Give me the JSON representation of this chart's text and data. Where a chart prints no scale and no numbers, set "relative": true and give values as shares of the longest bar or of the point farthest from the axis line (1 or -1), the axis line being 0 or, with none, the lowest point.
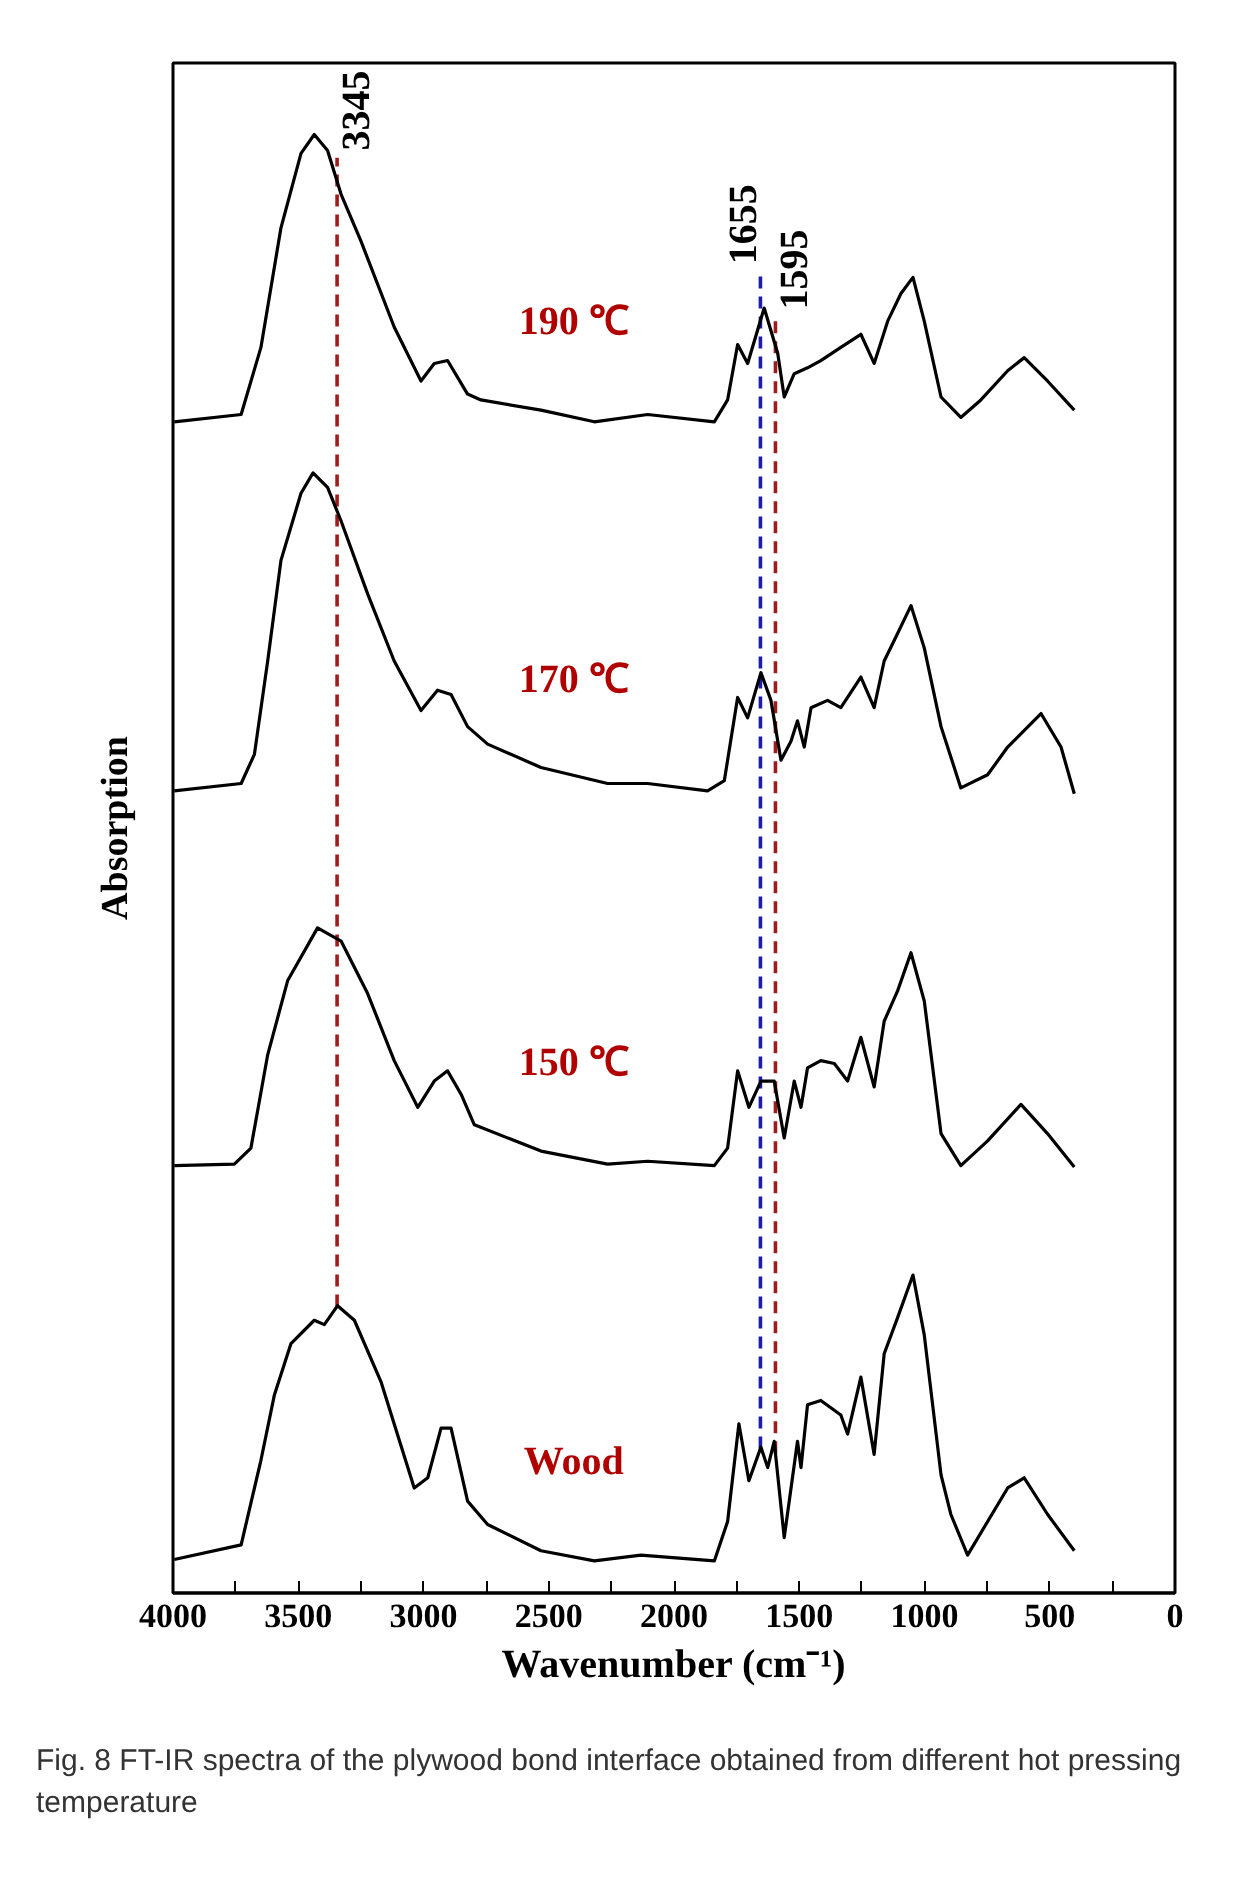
{
  "chart_data": {
    "type": "line",
    "relative": true,
    "xlabel": "Wavenumber (cm⁻¹)",
    "ylabel": "Absorption",
    "xlim": [
      4000,
      0
    ],
    "xticks": [
      4000,
      {
        "value": 3750,
        "label": null
      },
      3500,
      {
        "value": 3250,
        "label": null
      },
      3000,
      {
        "value": 2750,
        "label": null
      },
      2500,
      {
        "value": 2250,
        "label": null
      },
      2000,
      {
        "value": 1750,
        "label": null
      },
      1500,
      {
        "value": 1250,
        "label": null
      },
      1000,
      {
        "value": 750,
        "label": null
      },
      500,
      {
        "value": 250,
        "label": null
      },
      0
    ],
    "grid": false,
    "line_style": "solid",
    "ref_lines": [
      {
        "axis": "x",
        "value": 3345,
        "label": "3345",
        "color": "#a01c1c",
        "line_style": "dashed"
      },
      {
        "axis": "x",
        "value": 1655,
        "label": "1655",
        "color": "#1c1cb0",
        "line_style": "dashed"
      },
      {
        "axis": "x",
        "value": 1595,
        "label": "1595",
        "color": "#a01c1c",
        "line_style": "dashed"
      }
    ],
    "annotations": [
      "Fig. 8  FT-IR spectra of the plywood bond interface obtained from different hot pressing temperature"
    ],
    "series": [
      {
        "name": "190 ℃",
        "color": "#000000",
        "x": [
          3995,
          3728,
          3649,
          3569,
          3489,
          3436,
          3383,
          3329,
          3250,
          3117,
          3010,
          2957,
          2904,
          2824,
          2771,
          2531,
          2318,
          2105,
          1839,
          1786,
          1746,
          1706,
          1640,
          1586,
          1560,
          1520,
          1467,
          1414,
          1334,
          1254,
          1201,
          1147,
          1094,
          1046,
          1001,
          934,
          855,
          775,
          668,
          602,
          509,
          402
        ],
        "values": [
          0.803,
          0.808,
          0.854,
          0.936,
          0.987,
          1.0,
          0.989,
          0.959,
          0.927,
          0.868,
          0.831,
          0.843,
          0.845,
          0.822,
          0.818,
          0.811,
          0.803,
          0.808,
          0.803,
          0.818,
          0.856,
          0.843,
          0.881,
          0.85,
          0.82,
          0.836,
          0.84,
          0.845,
          0.854,
          0.863,
          0.843,
          0.872,
          0.891,
          0.902,
          0.872,
          0.82,
          0.806,
          0.818,
          0.838,
          0.847,
          0.831,
          0.811
        ]
      },
      {
        "name": "170 ℃",
        "color": "#000000",
        "x": [
          3995,
          3728,
          3675,
          3622,
          3569,
          3489,
          3441,
          3383,
          3329,
          3223,
          3117,
          3010,
          2944,
          2890,
          2824,
          2744,
          2531,
          2265,
          2105,
          1866,
          1799,
          1746,
          1706,
          1653,
          1613,
          1573,
          1533,
          1507,
          1480,
          1453,
          1387,
          1334,
          1254,
          1201,
          1161,
          1121,
          1054,
          1001,
          934,
          855,
          748,
          668,
          535,
          455,
          402
        ],
        "values": [
          0.55,
          0.555,
          0.575,
          0.639,
          0.708,
          0.754,
          0.768,
          0.758,
          0.735,
          0.685,
          0.639,
          0.605,
          0.619,
          0.616,
          0.594,
          0.582,
          0.566,
          0.555,
          0.555,
          0.55,
          0.557,
          0.614,
          0.6,
          0.631,
          0.612,
          0.571,
          0.584,
          0.598,
          0.58,
          0.607,
          0.612,
          0.607,
          0.628,
          0.607,
          0.639,
          0.653,
          0.677,
          0.648,
          0.594,
          0.552,
          0.561,
          0.58,
          0.603,
          0.58,
          0.548
        ]
      },
      {
        "name": "150 ℃",
        "color": "#000000",
        "x": [
          3995,
          3755,
          3689,
          3622,
          3542,
          3423,
          3329,
          3223,
          3117,
          3023,
          2957,
          2904,
          2850,
          2797,
          2531,
          2265,
          2105,
          1839,
          1786,
          1746,
          1701,
          1653,
          1600,
          1560,
          1520,
          1493,
          1467,
          1414,
          1360,
          1307,
          1254,
          1201,
          1161,
          1107,
          1054,
          1001,
          934,
          855,
          748,
          615,
          509,
          402
        ],
        "values": [
          0.293,
          0.294,
          0.305,
          0.369,
          0.42,
          0.456,
          0.447,
          0.411,
          0.365,
          0.333,
          0.351,
          0.358,
          0.342,
          0.321,
          0.303,
          0.294,
          0.296,
          0.293,
          0.305,
          0.358,
          0.333,
          0.351,
          0.351,
          0.312,
          0.351,
          0.333,
          0.36,
          0.365,
          0.363,
          0.351,
          0.381,
          0.347,
          0.392,
          0.413,
          0.439,
          0.406,
          0.315,
          0.293,
          0.31,
          0.335,
          0.315,
          0.292
        ]
      },
      {
        "name": "Wood",
        "color": "#000000",
        "x": [
          3995,
          3728,
          3649,
          3595,
          3529,
          3436,
          3396,
          3343,
          3276,
          3170,
          3037,
          2983,
          2930,
          2890,
          2824,
          2744,
          2531,
          2318,
          2132,
          1839,
          1786,
          1741,
          1701,
          1653,
          1626,
          1600,
          1560,
          1507,
          1493,
          1467,
          1414,
          1334,
          1307,
          1254,
          1201,
          1161,
          1107,
          1046,
          1001,
          934,
          895,
          828,
          668,
          602,
          509,
          402
        ],
        "values": [
          0.023,
          0.033,
          0.091,
          0.136,
          0.171,
          0.187,
          0.184,
          0.197,
          0.187,
          0.145,
          0.072,
          0.079,
          0.113,
          0.113,
          0.063,
          0.047,
          0.029,
          0.022,
          0.026,
          0.022,
          0.049,
          0.116,
          0.077,
          0.1,
          0.086,
          0.104,
          0.038,
          0.104,
          0.086,
          0.129,
          0.132,
          0.122,
          0.109,
          0.148,
          0.095,
          0.164,
          0.189,
          0.218,
          0.177,
          0.081,
          0.054,
          0.026,
          0.072,
          0.079,
          0.054,
          0.029
        ]
      }
    ]
  }
}
